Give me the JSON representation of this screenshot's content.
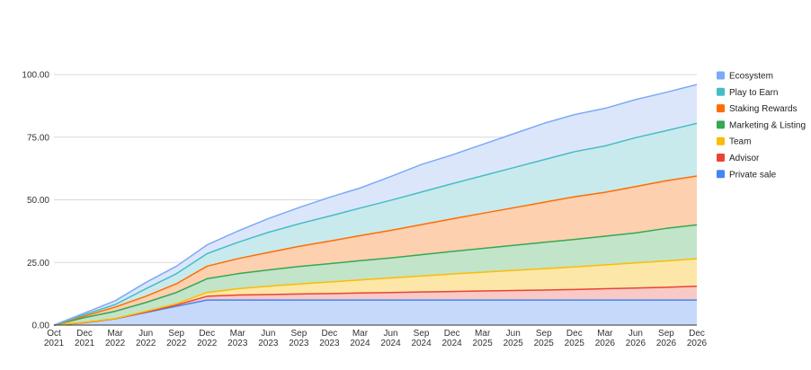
{
  "chart_data": {
    "type": "area",
    "stacked": true,
    "title": "",
    "xlabel": "",
    "ylabel": "",
    "ylim": [
      0,
      100
    ],
    "yticks": [
      "0.00",
      "25.00",
      "50.00",
      "75.00",
      "100.00"
    ],
    "grid": "horizontal",
    "legend_position": "right",
    "x": [
      "Oct 2021",
      "Dec 2021",
      "Mar 2022",
      "Jun 2022",
      "Sep 2022",
      "Dec 2022",
      "Mar 2023",
      "Jun 2023",
      "Sep 2023",
      "Dec 2023",
      "Mar 2024",
      "Jun 2024",
      "Sep 2024",
      "Dec 2024",
      "Mar 2025",
      "Jun 2025",
      "Sep 2025",
      "Dec 2025",
      "Mar 2026",
      "Jun 2026",
      "Sep 2026",
      "Dec 2026"
    ],
    "x_tick_lines": [
      [
        "Oct",
        "2021"
      ],
      [
        "Dec",
        "2021"
      ],
      [
        "Mar",
        "2022"
      ],
      [
        "Jun",
        "2022"
      ],
      [
        "Sep",
        "2022"
      ],
      [
        "Dec",
        "2022"
      ],
      [
        "Mar",
        "2023"
      ],
      [
        "Jun",
        "2023"
      ],
      [
        "Sep",
        "2023"
      ],
      [
        "Dec",
        "2023"
      ],
      [
        "Mar",
        "2024"
      ],
      [
        "Jun",
        "2024"
      ],
      [
        "Sep",
        "2024"
      ],
      [
        "Dec",
        "2024"
      ],
      [
        "Mar",
        "2025"
      ],
      [
        "Jun",
        "2025"
      ],
      [
        "Sep",
        "2025"
      ],
      [
        "Dec",
        "2025"
      ],
      [
        "Mar",
        "2026"
      ],
      [
        "Jun",
        "2026"
      ],
      [
        "Sep",
        "2026"
      ],
      [
        "Dec",
        "2026"
      ]
    ],
    "series": [
      {
        "name": "Private sale",
        "line_color": "#4285f4",
        "fill_color": "#c6d9fb",
        "values": [
          0,
          1.0,
          2.5,
          5.0,
          7.5,
          10,
          10,
          10,
          10,
          10,
          10,
          10,
          10,
          10,
          10,
          10,
          10,
          10,
          10,
          10,
          10,
          10
        ]
      },
      {
        "name": "Advisor",
        "line_color": "#ea4335",
        "fill_color": "#f8c9c5",
        "values": [
          0,
          0.0,
          0.0,
          0.2,
          0.5,
          1.5,
          2.0,
          2.2,
          2.4,
          2.6,
          2.8,
          3.0,
          3.2,
          3.4,
          3.6,
          3.8,
          4.0,
          4.2,
          4.5,
          4.8,
          5.1,
          5.5
        ]
      },
      {
        "name": "Team",
        "line_color": "#fbbc04",
        "fill_color": "#fde7a8",
        "values": [
          0,
          0.1,
          0.1,
          0.3,
          0.5,
          1.5,
          2.5,
          3.3,
          4.0,
          4.6,
          5.2,
          5.8,
          6.4,
          7.0,
          7.5,
          8.0,
          8.5,
          9.0,
          9.5,
          10.0,
          10.5,
          11.0
        ]
      },
      {
        "name": "Marketing & Listing",
        "line_color": "#34a853",
        "fill_color": "#c2e4c9",
        "values": [
          0,
          1.9,
          2.9,
          3.5,
          4.5,
          5.5,
          6.0,
          6.5,
          7.0,
          7.3,
          7.7,
          8.0,
          8.5,
          9.0,
          9.5,
          10.0,
          10.5,
          11.0,
          11.5,
          12.0,
          13.0,
          13.5
        ]
      },
      {
        "name": "Staking Rewards",
        "line_color": "#ff6d01",
        "fill_color": "#fdd0b0",
        "values": [
          0,
          0.6,
          1.7,
          2.5,
          3.5,
          5.0,
          6.0,
          7.0,
          8.0,
          9.0,
          10.0,
          11.0,
          12.0,
          13.0,
          14.0,
          15.0,
          16.0,
          17.0,
          17.5,
          18.5,
          19.0,
          19.5
        ]
      },
      {
        "name": "Play to Earn",
        "line_color": "#46bdc6",
        "fill_color": "#c9eaec",
        "values": [
          0,
          0.6,
          1.0,
          3.0,
          4.0,
          5.0,
          6.5,
          8.0,
          9.0,
          10.0,
          11.0,
          12.0,
          13.0,
          14.0,
          15.0,
          16.0,
          17.0,
          18.0,
          18.5,
          19.5,
          20.0,
          21.0
        ]
      },
      {
        "name": "Ecosystem",
        "line_color": "#7baaf7",
        "fill_color": "#dce6fb",
        "values": [
          0,
          0.6,
          1.5,
          2.5,
          3.0,
          3.5,
          4.5,
          5.5,
          6.5,
          7.5,
          8.0,
          9.5,
          11.0,
          11.5,
          12.5,
          13.5,
          14.5,
          14.8,
          15.0,
          15.2,
          15.3,
          15.5
        ]
      }
    ]
  }
}
